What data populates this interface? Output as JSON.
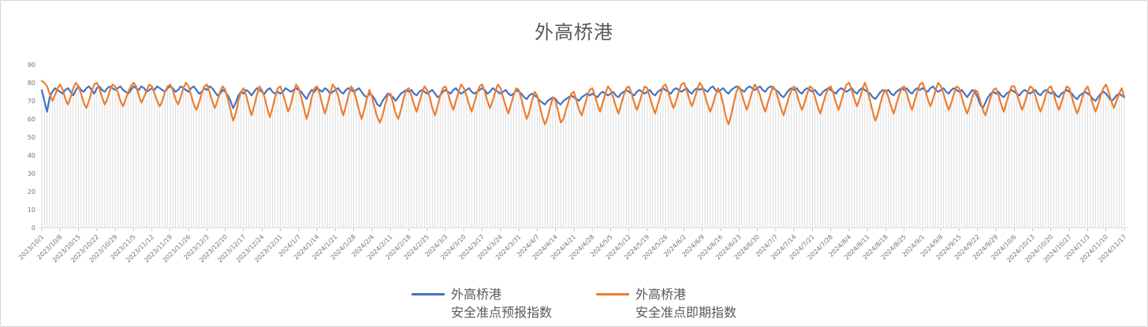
{
  "title": {
    "text": "外高桥港",
    "color": "#595959"
  },
  "legend": [
    {
      "name": "外高桥港",
      "subtitle": "安全准点预报指数",
      "color": "#4472C4"
    },
    {
      "name": "外高桥港",
      "subtitle": "安全准点即期指数",
      "color": "#ED7D31"
    }
  ],
  "chart_data": {
    "type": "line",
    "title": "外高桥港",
    "x_frequency": "daily",
    "x_start": "2023/10/1",
    "x_end": "2024/11/17",
    "tick_interval_days": 7,
    "tick_labels": [
      "2023/10/1",
      "2023/10/8",
      "2023/10/15",
      "2023/10/22",
      "2023/10/29",
      "2023/11/5",
      "2023/11/12",
      "2023/11/19",
      "2023/11/26",
      "2023/12/3",
      "2023/12/10",
      "2023/12/17",
      "2023/12/24",
      "2023/12/31",
      "2024/1/7",
      "2024/1/14",
      "2024/1/21",
      "2024/1/28",
      "2024/2/4",
      "2024/2/11",
      "2024/2/18",
      "2024/2/25",
      "2024/3/3",
      "2024/3/10",
      "2024/3/17",
      "2024/3/24",
      "2024/3/31",
      "2024/4/7",
      "2024/4/14",
      "2024/4/21",
      "2024/4/28",
      "2024/5/5",
      "2024/5/12",
      "2024/5/19",
      "2024/5/26",
      "2024/6/2",
      "2024/6/9",
      "2024/6/16",
      "2024/6/23",
      "2024/6/30",
      "2024/7/7",
      "2024/7/14",
      "2024/7/21",
      "2024/7/28",
      "2024/8/4",
      "2024/8/11",
      "2024/8/18",
      "2024/8/25",
      "2024/9/1",
      "2024/9/8",
      "2024/9/15",
      "2024/9/22",
      "2024/9/29",
      "2024/10/6",
      "2024/10/13",
      "2024/10/20",
      "2024/10/27",
      "2024/11/3",
      "2024/11/10",
      "2024/11/17"
    ],
    "ylim": [
      0,
      90
    ],
    "y_ticks": [
      0,
      10,
      20,
      30,
      40,
      50,
      60,
      70,
      80,
      90
    ],
    "grid": "vertical-drop-lines-per-point",
    "dropline_color": "#d9d9d9",
    "legend_position": "bottom",
    "series": [
      {
        "name": "外高桥港 安全准点预报指数",
        "color": "#4472C4",
        "values": [
          76,
          70,
          64,
          72,
          75,
          77,
          76,
          75,
          74,
          76,
          77,
          75,
          73,
          76,
          78,
          76,
          75,
          77,
          78,
          76,
          74,
          77,
          78,
          76,
          75,
          77,
          78,
          77,
          76,
          77,
          78,
          76,
          75,
          74,
          76,
          78,
          77,
          76,
          78,
          77,
          75,
          76,
          77,
          76,
          78,
          77,
          76,
          75,
          77,
          78,
          77,
          75,
          76,
          78,
          77,
          76,
          75,
          77,
          78,
          76,
          74,
          75,
          77,
          76,
          78,
          77,
          75,
          73,
          74,
          76,
          75,
          73,
          70,
          66,
          69,
          73,
          75,
          74,
          76,
          75,
          73,
          75,
          77,
          76,
          75,
          74,
          76,
          77,
          75,
          74,
          75,
          74,
          75,
          77,
          76,
          75,
          76,
          77,
          76,
          75,
          73,
          71,
          74,
          76,
          75,
          77,
          76,
          75,
          77,
          76,
          74,
          75,
          76,
          77,
          75,
          74,
          76,
          77,
          76,
          75,
          76,
          77,
          75,
          73,
          72,
          74,
          73,
          71,
          68,
          67,
          70,
          72,
          74,
          73,
          72,
          70,
          72,
          74,
          75,
          76,
          75,
          76,
          74,
          73,
          75,
          76,
          75,
          74,
          75,
          76,
          74,
          72,
          73,
          75,
          76,
          75,
          74,
          76,
          77,
          75,
          74,
          75,
          76,
          77,
          75,
          74,
          75,
          76,
          77,
          76,
          74,
          75,
          77,
          76,
          75,
          74,
          75,
          76,
          74,
          73,
          74,
          76,
          75,
          74,
          72,
          71,
          73,
          74,
          73,
          72,
          70,
          69,
          68,
          70,
          71,
          72,
          71,
          69,
          68,
          70,
          71,
          72,
          73,
          72,
          71,
          70,
          72,
          73,
          74,
          73,
          74,
          73,
          72,
          74,
          75,
          74,
          73,
          74,
          75,
          73,
          72,
          74,
          75,
          76,
          75,
          74,
          73,
          75,
          76,
          75,
          74,
          75,
          76,
          74,
          73,
          75,
          76,
          77,
          76,
          75,
          74,
          76,
          77,
          76,
          75,
          76,
          77,
          75,
          74,
          76,
          77,
          76,
          77,
          76,
          75,
          77,
          78,
          76,
          75,
          76,
          77,
          75,
          74,
          76,
          77,
          78,
          77,
          76,
          75,
          77,
          78,
          77,
          76,
          77,
          78,
          76,
          75,
          77,
          78,
          77,
          76,
          75,
          73,
          72,
          74,
          76,
          77,
          76,
          77,
          75,
          74,
          76,
          77,
          76,
          75,
          76,
          74,
          73,
          75,
          76,
          77,
          76,
          75,
          74,
          76,
          77,
          76,
          75,
          76,
          77,
          75,
          74,
          76,
          77,
          76,
          75,
          74,
          72,
          71,
          73,
          75,
          76,
          75,
          76,
          74,
          73,
          75,
          76,
          77,
          76,
          77,
          75,
          74,
          76,
          77,
          76,
          77,
          76,
          75,
          77,
          78,
          76,
          75,
          76,
          77,
          75,
          74,
          76,
          77,
          76,
          75,
          76,
          74,
          72,
          74,
          76,
          75,
          72,
          68,
          66,
          69,
          72,
          74,
          75,
          74,
          75,
          73,
          72,
          74,
          75,
          76,
          75,
          74,
          73,
          75,
          76,
          75,
          74,
          75,
          76,
          74,
          73,
          75,
          76,
          75,
          74,
          75,
          73,
          72,
          74,
          75,
          76,
          75,
          74,
          72,
          71,
          73,
          74,
          75,
          74,
          73,
          71,
          70,
          72,
          74,
          75,
          74,
          72,
          70,
          71,
          73,
          74,
          73,
          72
        ]
      },
      {
        "name": "外高桥港 安全准点即期指数",
        "color": "#ED7D31",
        "values": [
          81,
          80,
          78,
          74,
          70,
          73,
          77,
          79,
          76,
          71,
          68,
          72,
          77,
          80,
          78,
          74,
          69,
          66,
          70,
          75,
          79,
          80,
          77,
          72,
          68,
          71,
          76,
          79,
          78,
          75,
          70,
          67,
          71,
          75,
          78,
          80,
          78,
          73,
          69,
          72,
          76,
          79,
          78,
          74,
          70,
          67,
          70,
          75,
          78,
          79,
          76,
          71,
          68,
          72,
          77,
          80,
          78,
          73,
          68,
          65,
          69,
          74,
          78,
          79,
          75,
          70,
          66,
          70,
          75,
          78,
          76,
          71,
          65,
          59,
          63,
          70,
          75,
          77,
          73,
          67,
          62,
          67,
          73,
          78,
          76,
          72,
          66,
          61,
          66,
          72,
          77,
          78,
          74,
          69,
          64,
          68,
          74,
          79,
          77,
          72,
          66,
          60,
          65,
          72,
          77,
          78,
          74,
          68,
          63,
          68,
          74,
          79,
          77,
          73,
          67,
          62,
          67,
          73,
          78,
          76,
          71,
          65,
          60,
          65,
          71,
          76,
          72,
          66,
          61,
          58,
          62,
          68,
          73,
          74,
          69,
          63,
          60,
          65,
          71,
          76,
          77,
          73,
          68,
          64,
          69,
          74,
          78,
          76,
          72,
          66,
          62,
          67,
          73,
          77,
          78,
          74,
          69,
          65,
          70,
          75,
          79,
          77,
          73,
          68,
          64,
          69,
          74,
          78,
          79,
          75,
          70,
          66,
          70,
          75,
          79,
          77,
          72,
          67,
          63,
          68,
          73,
          77,
          76,
          71,
          65,
          60,
          64,
          70,
          75,
          73,
          67,
          61,
          57,
          61,
          67,
          72,
          70,
          64,
          58,
          60,
          65,
          70,
          74,
          75,
          70,
          65,
          62,
          67,
          72,
          76,
          77,
          73,
          68,
          64,
          69,
          74,
          78,
          76,
          72,
          67,
          63,
          68,
          73,
          77,
          78,
          74,
          69,
          65,
          69,
          74,
          78,
          77,
          72,
          67,
          63,
          68,
          73,
          78,
          79,
          75,
          70,
          66,
          70,
          75,
          79,
          80,
          76,
          71,
          67,
          71,
          76,
          80,
          78,
          73,
          68,
          64,
          68,
          73,
          77,
          74,
          68,
          61,
          57,
          62,
          69,
          75,
          78,
          74,
          69,
          65,
          70,
          75,
          79,
          77,
          73,
          68,
          64,
          69,
          74,
          78,
          76,
          71,
          66,
          62,
          67,
          72,
          76,
          78,
          74,
          69,
          65,
          69,
          74,
          78,
          77,
          72,
          67,
          63,
          68,
          73,
          77,
          78,
          74,
          69,
          65,
          70,
          75,
          79,
          80,
          76,
          71,
          67,
          71,
          76,
          80,
          76,
          70,
          64,
          59,
          63,
          69,
          74,
          76,
          72,
          67,
          63,
          68,
          73,
          77,
          78,
          74,
          69,
          65,
          70,
          75,
          79,
          80,
          76,
          71,
          67,
          71,
          76,
          80,
          78,
          74,
          69,
          65,
          69,
          74,
          78,
          77,
          72,
          67,
          63,
          67,
          72,
          76,
          75,
          70,
          65,
          62,
          67,
          72,
          76,
          77,
          73,
          68,
          64,
          69,
          74,
          78,
          78,
          74,
          69,
          65,
          69,
          74,
          78,
          77,
          73,
          68,
          64,
          68,
          73,
          77,
          78,
          74,
          69,
          65,
          69,
          74,
          78,
          77,
          72,
          67,
          63,
          67,
          72,
          76,
          78,
          73,
          68,
          64,
          68,
          73,
          77,
          79,
          75,
          70,
          66,
          70,
          74,
          77,
          72
        ]
      }
    ]
  }
}
